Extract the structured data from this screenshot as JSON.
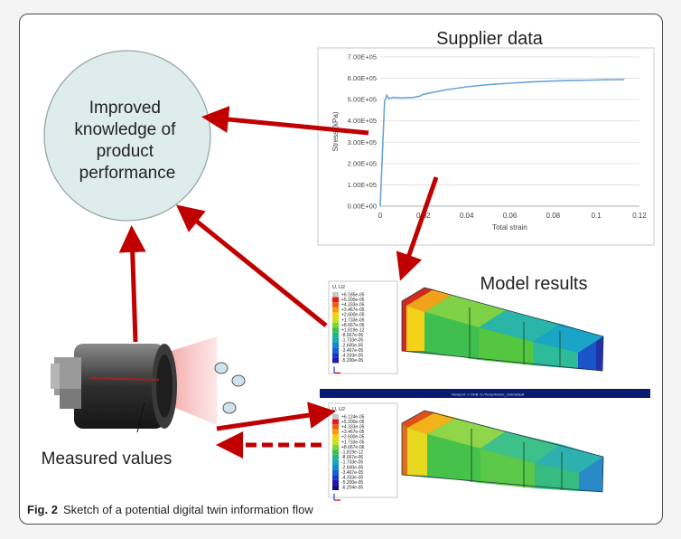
{
  "diagram": {
    "circle_text": [
      "Improved",
      "knowledge of",
      "product",
      "performance"
    ],
    "supplier_title": "Supplier data",
    "model_title": "Model results",
    "measured_label": "Measured values",
    "chart": {
      "type": "line",
      "ylabel": "Stress (kPa)",
      "xlabel": "Total strain",
      "xlim": [
        0,
        0.12
      ],
      "ylim": [
        0,
        700000
      ],
      "xticks": [
        "0",
        "0.02",
        "0.04",
        "0.06",
        "0.08",
        "0.1",
        "0.12"
      ],
      "yticks": [
        "0.00E+00",
        "1.00E+05",
        "2.00E+05",
        "3.00E+05",
        "4.00E+05",
        "5.00E+05",
        "6.00E+05",
        "7.00E+05"
      ],
      "grid": true,
      "color": "#6aa4d8"
    },
    "legend_top": {
      "header": "U, U2",
      "values": [
        "+6.185e-05",
        "+5.200e-05",
        "+4.333e-05",
        "+3.467e-05",
        "+2.600e-05",
        "+1.733e-05",
        "+8.667e-06",
        "+1.819e-12",
        "-8.667e-06",
        "-1.733e-05",
        "-2.600e-05",
        "-3.467e-05",
        "-4.333e-05",
        "-5.200e-05"
      ]
    },
    "legend_bottom": {
      "header": "U, U2",
      "values": [
        "+6.124e-05",
        "+5.200e-05",
        "+4.333e-05",
        "+3.467e-05",
        "+2.600e-05",
        "+1.733e-05",
        "+8.667e-06",
        "-1.819e-12",
        "-8.667e-06",
        "-1.733e-05",
        "-2.600e-05",
        "-3.467e-05",
        "-4.333e-05",
        "-5.200e-05",
        "-6.204e-05"
      ]
    },
    "viewport_bar_text": "Viewport: 2    ODB: D:/Temp/Model_2dd/default",
    "colors": {
      "arrow": "#c00000",
      "circle_fill": "#dfecec",
      "bar": "#0a1a6e"
    }
  },
  "chart_data": {
    "type": "line",
    "title": "Supplier data",
    "xlabel": "Total strain",
    "ylabel": "Stress (kPa)",
    "xlim": [
      0,
      0.12
    ],
    "ylim": [
      0,
      700000
    ],
    "series": [
      {
        "x": [
          0,
          0.001,
          0.002,
          0.003,
          0.004,
          0.006,
          0.01,
          0.015,
          0.018,
          0.02,
          0.03,
          0.04,
          0.05,
          0.06,
          0.07,
          0.08,
          0.09,
          0.1,
          0.105,
          0.113
        ],
        "y": [
          0,
          250000,
          490000,
          520000,
          505000,
          510000,
          508000,
          510000,
          515000,
          525000,
          545000,
          560000,
          570000,
          577000,
          583000,
          587000,
          590000,
          592000,
          593000,
          594000
        ]
      }
    ]
  },
  "caption": {
    "label": "Fig. 2",
    "text": "Sketch of a potential digital twin information flow"
  }
}
